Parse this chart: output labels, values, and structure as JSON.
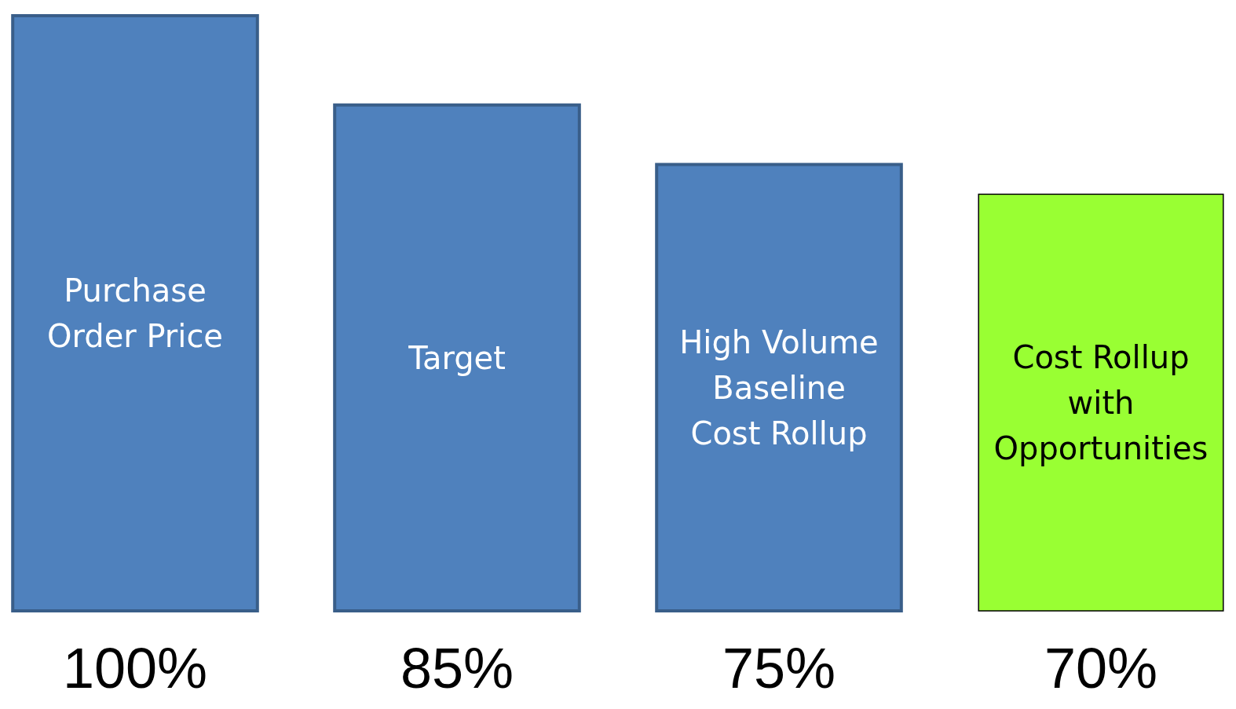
{
  "chart_data": {
    "type": "bar",
    "categories": [
      "Purchase Order Price",
      "Target",
      "High Volume Baseline Cost Rollup",
      "Cost Rollup with Opportunities"
    ],
    "values": [
      100,
      85,
      75,
      70
    ],
    "value_labels": [
      "100%",
      "85%",
      "75%",
      "70%"
    ],
    "colors": [
      "#4f81bd",
      "#4f81bd",
      "#4f81bd",
      "#99ff33"
    ]
  }
}
